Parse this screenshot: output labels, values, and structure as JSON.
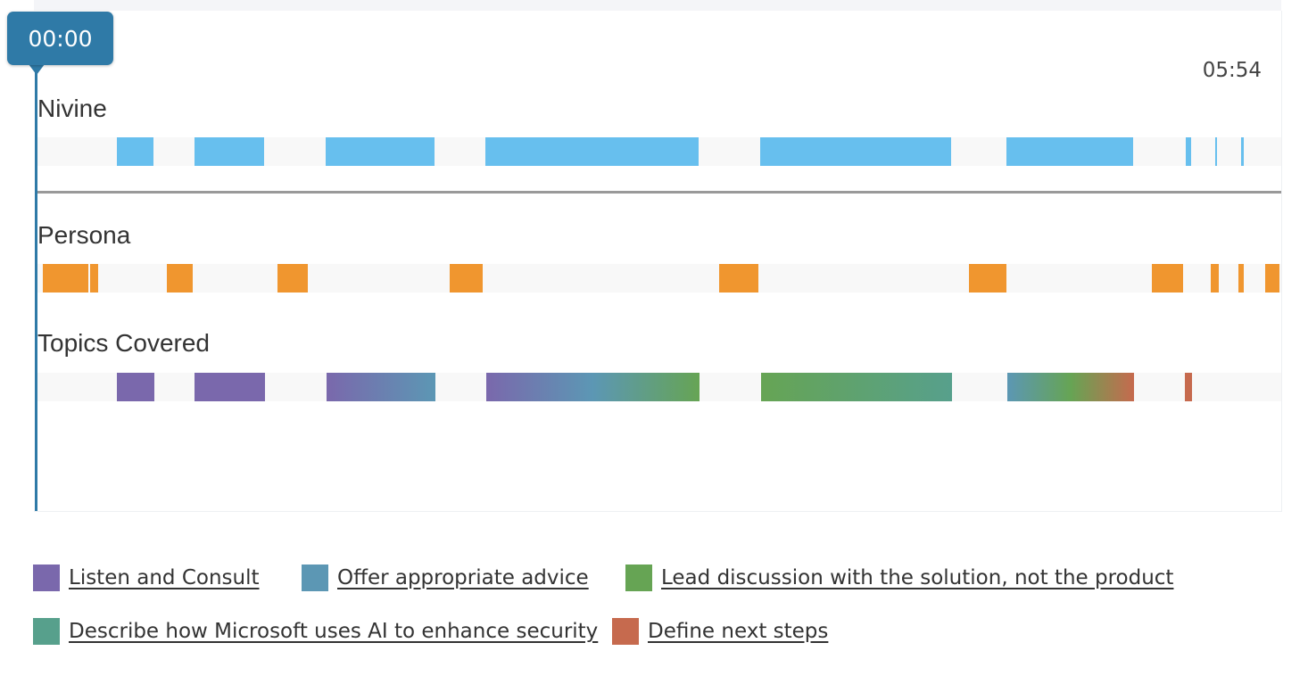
{
  "timeline": {
    "current_time": "00:00",
    "end_time": "05:54",
    "duration_seconds": 354
  },
  "tracks": [
    {
      "id": "nivine",
      "label": "Nivine",
      "color": "#67bfee",
      "segments": [
        {
          "start": 22.5,
          "end": 33.0
        },
        {
          "start": 44.8,
          "end": 64.6
        },
        {
          "start": 82.0,
          "end": 113.0
        },
        {
          "start": 127.5,
          "end": 188.3
        },
        {
          "start": 205.7,
          "end": 260.1
        },
        {
          "start": 275.9,
          "end": 311.9
        },
        {
          "start": 326.8,
          "end": 328.3
        },
        {
          "start": 335.3,
          "end": 335.8
        },
        {
          "start": 342.6,
          "end": 343.3
        }
      ]
    },
    {
      "id": "persona",
      "label": "Persona",
      "color": "#f0962f",
      "segments": [
        {
          "start": 1.5,
          "end": 14.5
        },
        {
          "start": 14.9,
          "end": 17.2
        },
        {
          "start": 36.9,
          "end": 44.3
        },
        {
          "start": 68.2,
          "end": 77.0
        },
        {
          "start": 117.3,
          "end": 126.6
        },
        {
          "start": 193.9,
          "end": 205.1
        },
        {
          "start": 265.1,
          "end": 275.9
        },
        {
          "start": 317.3,
          "end": 326.0
        },
        {
          "start": 333.9,
          "end": 336.2
        },
        {
          "start": 341.9,
          "end": 343.3
        },
        {
          "start": 349.5,
          "end": 353.4
        }
      ]
    },
    {
      "id": "topics",
      "label": "Topics Covered",
      "segments": [
        {
          "start": 22.6,
          "end": 33.3,
          "colors": [
            "#7a68ac",
            "#7a68ac"
          ]
        },
        {
          "start": 44.6,
          "end": 64.7,
          "colors": [
            "#7a68ac",
            "#7a68ac"
          ]
        },
        {
          "start": 82.3,
          "end": 113.3,
          "colors": [
            "#7a68ac",
            "#5c97b4"
          ]
        },
        {
          "start": 127.7,
          "end": 188.4,
          "colors": [
            "#7a68ac",
            "#5c97b4",
            "#66a454"
          ]
        },
        {
          "start": 205.9,
          "end": 260.3,
          "colors": [
            "#66a454",
            "#57a08c"
          ]
        },
        {
          "start": 276.1,
          "end": 312.1,
          "colors": [
            "#5c97b4",
            "#66a454",
            "#c66a4e"
          ]
        },
        {
          "start": 326.6,
          "end": 328.6,
          "colors": [
            "#c66a4e",
            "#c66a4e"
          ]
        }
      ]
    }
  ],
  "legend": [
    {
      "label": "Listen and Consult",
      "color": "#7a68ac"
    },
    {
      "label": "Offer appropriate advice",
      "color": "#5c97b4"
    },
    {
      "label": "Lead discussion with the solution, not the product",
      "color": "#66a454"
    },
    {
      "label": "Describe how Microsoft uses AI to enhance security",
      "color": "#57a08c"
    },
    {
      "label": "Define next steps",
      "color": "#c66a4e"
    }
  ]
}
